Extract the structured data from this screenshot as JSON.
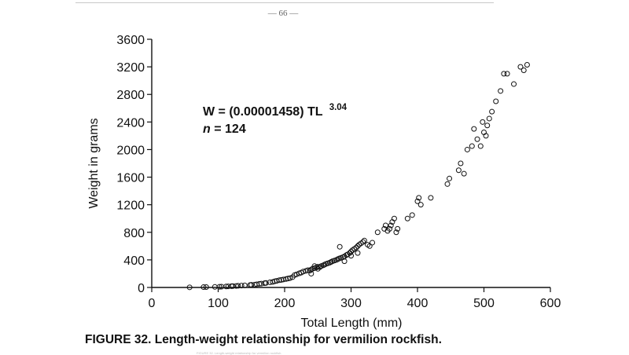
{
  "page": {
    "number_text": "— 66 —"
  },
  "annotation": {
    "formula_prefix": "W = (0.00001458) TL",
    "formula_exponent": "3.04",
    "n_symbol": "n",
    "n_rest": " = 124"
  },
  "caption": {
    "figure_label": "FIGURE 32.",
    "text": "Length-weight relationship for vermilion rockfish.",
    "footnote": "FIGURE 32. Length-weight relationship for vermilion rockfish."
  },
  "chart_data": {
    "type": "scatter",
    "title": "",
    "xlabel": "Total Length (mm)",
    "ylabel": "Weight in grams",
    "xlim": [
      0,
      600
    ],
    "ylim": [
      0,
      3600
    ],
    "xticks": [
      0,
      100,
      200,
      300,
      400,
      500,
      600
    ],
    "yticks": [
      0,
      400,
      800,
      1200,
      1600,
      2000,
      2400,
      2800,
      3200,
      3600
    ],
    "marker": "open-circle",
    "grid": false,
    "points": [
      [
        57,
        2
      ],
      [
        78,
        5
      ],
      [
        82,
        6
      ],
      [
        95,
        8
      ],
      [
        102,
        10
      ],
      [
        105,
        11
      ],
      [
        112,
        14
      ],
      [
        115,
        15
      ],
      [
        120,
        18
      ],
      [
        122,
        20
      ],
      [
        127,
        22
      ],
      [
        130,
        24
      ],
      [
        135,
        27
      ],
      [
        140,
        30
      ],
      [
        148,
        36
      ],
      [
        150,
        38
      ],
      [
        155,
        42
      ],
      [
        158,
        45
      ],
      [
        162,
        52
      ],
      [
        165,
        55
      ],
      [
        170,
        62
      ],
      [
        172,
        65
      ],
      [
        178,
        75
      ],
      [
        182,
        80
      ],
      [
        185,
        90
      ],
      [
        188,
        95
      ],
      [
        192,
        105
      ],
      [
        195,
        110
      ],
      [
        198,
        115
      ],
      [
        202,
        122
      ],
      [
        205,
        130
      ],
      [
        208,
        135
      ],
      [
        212,
        150
      ],
      [
        215,
        180
      ],
      [
        218,
        190
      ],
      [
        222,
        205
      ],
      [
        225,
        215
      ],
      [
        228,
        230
      ],
      [
        232,
        240
      ],
      [
        235,
        250
      ],
      [
        238,
        245
      ],
      [
        240,
        260
      ],
      [
        242,
        270
      ],
      [
        245,
        280
      ],
      [
        248,
        290
      ],
      [
        250,
        300
      ],
      [
        253,
        295
      ],
      [
        255,
        310
      ],
      [
        258,
        320
      ],
      [
        260,
        330
      ],
      [
        262,
        340
      ],
      [
        265,
        350
      ],
      [
        268,
        360
      ],
      [
        270,
        370
      ],
      [
        272,
        380
      ],
      [
        275,
        390
      ],
      [
        278,
        400
      ],
      [
        280,
        410
      ],
      [
        282,
        420
      ],
      [
        285,
        430
      ],
      [
        288,
        440
      ],
      [
        290,
        450
      ],
      [
        293,
        470
      ],
      [
        295,
        480
      ],
      [
        298,
        500
      ],
      [
        300,
        520
      ],
      [
        302,
        540
      ],
      [
        305,
        560
      ],
      [
        308,
        580
      ],
      [
        310,
        600
      ],
      [
        312,
        620
      ],
      [
        315,
        640
      ],
      [
        318,
        660
      ],
      [
        320,
        680
      ],
      [
        283,
        590
      ],
      [
        325,
        620
      ],
      [
        328,
        600
      ],
      [
        332,
        650
      ],
      [
        340,
        800
      ],
      [
        350,
        850
      ],
      [
        352,
        900
      ],
      [
        355,
        820
      ],
      [
        358,
        850
      ],
      [
        360,
        900
      ],
      [
        362,
        950
      ],
      [
        365,
        1000
      ],
      [
        368,
        800
      ],
      [
        370,
        850
      ],
      [
        385,
        1000
      ],
      [
        392,
        1050
      ],
      [
        400,
        1250
      ],
      [
        402,
        1300
      ],
      [
        405,
        1200
      ],
      [
        420,
        1300
      ],
      [
        445,
        1500
      ],
      [
        448,
        1580
      ],
      [
        462,
        1700
      ],
      [
        465,
        1800
      ],
      [
        470,
        1650
      ],
      [
        475,
        2000
      ],
      [
        482,
        2050
      ],
      [
        485,
        2300
      ],
      [
        490,
        2150
      ],
      [
        495,
        2050
      ],
      [
        498,
        2400
      ],
      [
        500,
        2250
      ],
      [
        503,
        2200
      ],
      [
        505,
        2350
      ],
      [
        508,
        2450
      ],
      [
        512,
        2550
      ],
      [
        518,
        2700
      ],
      [
        525,
        2850
      ],
      [
        530,
        3100
      ],
      [
        535,
        3100
      ],
      [
        545,
        2950
      ],
      [
        555,
        3200
      ],
      [
        560,
        3150
      ],
      [
        565,
        3230
      ],
      [
        290,
        380
      ],
      [
        300,
        460
      ],
      [
        310,
        500
      ],
      [
        250,
        270
      ],
      [
        245,
        310
      ],
      [
        240,
        200
      ]
    ]
  }
}
